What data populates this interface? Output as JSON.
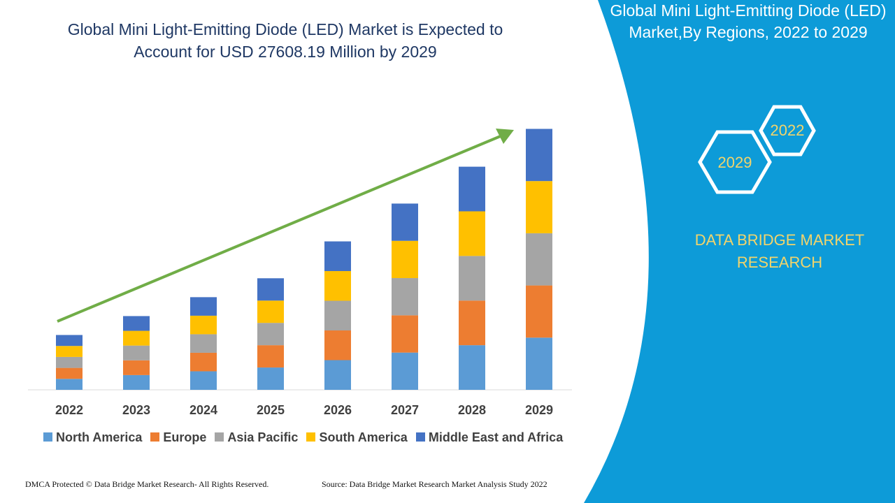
{
  "header": {
    "title": "Global Mini Light-Emitting Diode (LED) Market is Expected to Account for USD 27608.19 Million by 2029"
  },
  "chart_data": {
    "type": "stacked-bar",
    "categories": [
      "2022",
      "2023",
      "2024",
      "2025",
      "2026",
      "2027",
      "2028",
      "2029"
    ],
    "series": [
      {
        "name": "North America",
        "color": "#5b9bd5",
        "values": [
          1160,
          1560,
          1960,
          2360,
          3140,
          3940,
          4720,
          5520
        ]
      },
      {
        "name": "Europe",
        "color": "#ed7d31",
        "values": [
          1160,
          1560,
          1960,
          2360,
          3140,
          3940,
          4720,
          5520
        ]
      },
      {
        "name": "Asia Pacific",
        "color": "#a5a5a5",
        "values": [
          1160,
          1560,
          1960,
          2360,
          3140,
          3940,
          4720,
          5520
        ]
      },
      {
        "name": "South America",
        "color": "#ffc000",
        "values": [
          1160,
          1560,
          1960,
          2360,
          3140,
          3940,
          4720,
          5520
        ]
      },
      {
        "name": "Middle East and Africa",
        "color": "#4472c4",
        "values": [
          1160,
          1560,
          1960,
          2360,
          3140,
          3940,
          4720,
          5520
        ]
      }
    ],
    "ylim": [
      0,
      30000
    ]
  },
  "side_panel": {
    "title": "Global Mini Light-Emitting Diode (LED) Market,By Regions, 2022 to 2029",
    "badges": [
      "2022",
      "2029"
    ],
    "brand": "DATA BRIDGE MARKET RESEARCH"
  },
  "footer": {
    "copyright": "DMCA Protected © Data Bridge Market Research- All Rights Reserved.",
    "source": "Source: Data Bridge Market Research Market Analysis Study 2022"
  }
}
